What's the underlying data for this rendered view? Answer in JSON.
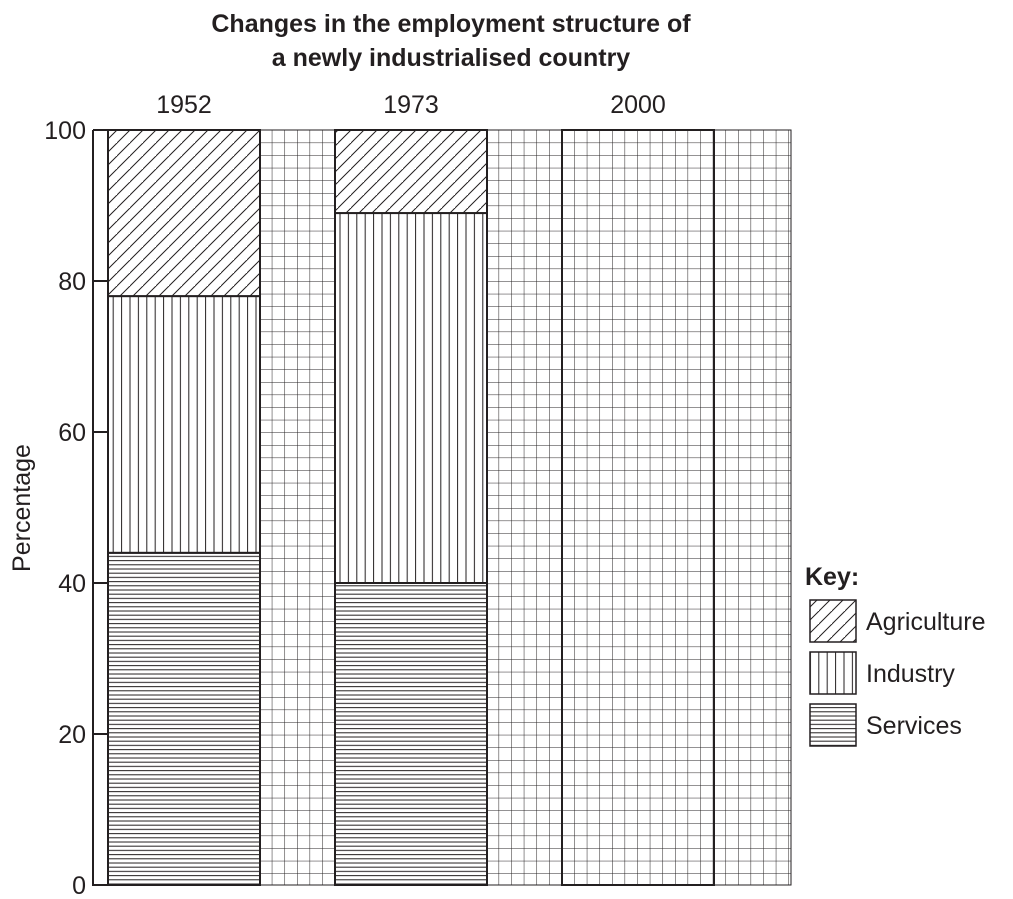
{
  "chart_data": {
    "type": "bar",
    "stacked": true,
    "title": [
      "Changes in the employment structure of",
      "a newly industrialised country"
    ],
    "ylabel": "Percentage",
    "ylim": [
      0,
      100
    ],
    "y_ticks": [
      "0",
      "20",
      "40",
      "60",
      "80",
      "100"
    ],
    "categories": [
      "1952",
      "1973",
      "2000"
    ],
    "series": [
      {
        "name": "Services",
        "pattern": "horizontal-lines",
        "values": [
          44,
          40,
          null
        ]
      },
      {
        "name": "Industry",
        "pattern": "vertical-lines",
        "values": [
          34,
          49,
          null
        ]
      },
      {
        "name": "Agriculture",
        "pattern": "diagonal-hatch",
        "values": [
          22,
          11,
          null
        ]
      }
    ],
    "background_grid": true,
    "legend": {
      "title": "Key:",
      "position": "right",
      "entries": [
        "Agriculture",
        "Industry",
        "Services"
      ]
    },
    "colors": {
      "ink": "#231f20",
      "background": "#ffffff"
    }
  }
}
